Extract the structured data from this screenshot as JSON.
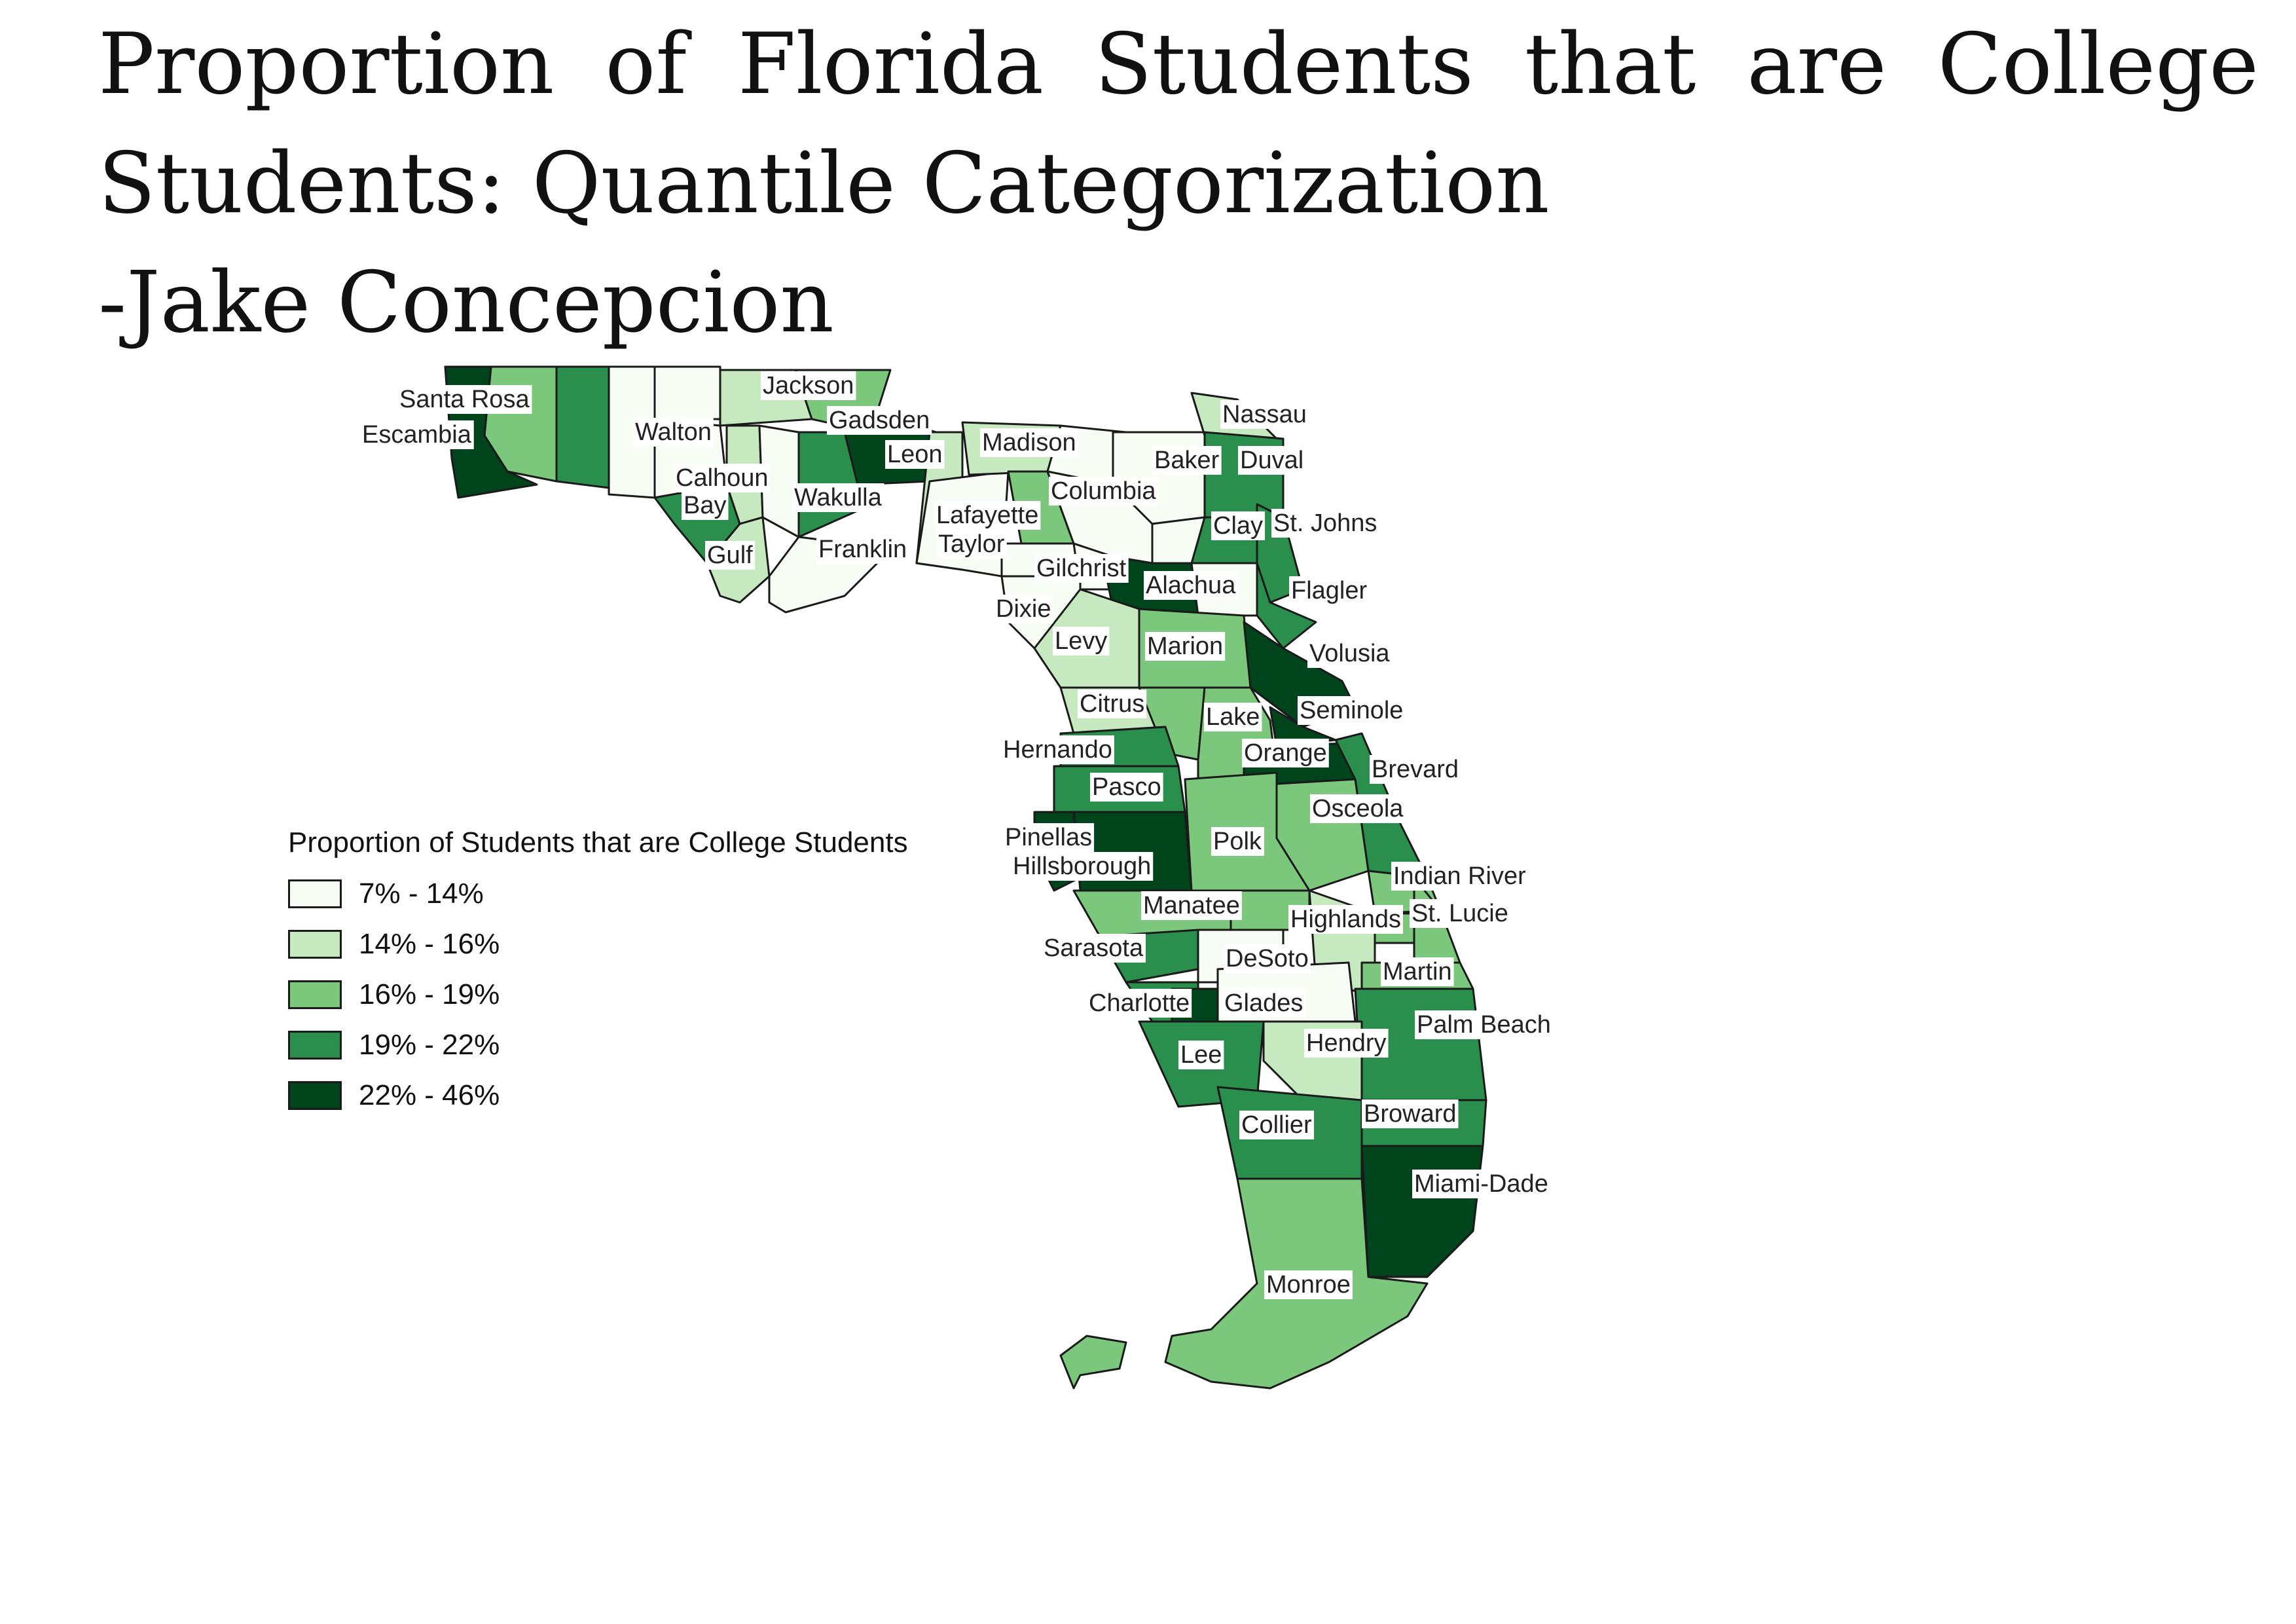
{
  "title": {
    "line1_words": [
      "Proportion",
      "of",
      "Florida",
      "Students",
      "that",
      "are",
      "College"
    ],
    "line2": "Students: Quantile Categorization",
    "line3": "-Jake Concepcion"
  },
  "legend": {
    "title": "Proportion of Students that are College Students",
    "classes": [
      {
        "label": "7% - 14%",
        "color": "#f7fcf5"
      },
      {
        "label": "14% - 16%",
        "color": "#c7e9c0"
      },
      {
        "label": "16% - 19%",
        "color": "#7bc87c"
      },
      {
        "label": "19% - 22%",
        "color": "#2a8f4c"
      },
      {
        "label": "22% - 46%",
        "color": "#00441b"
      }
    ]
  },
  "counties": {
    "santa_rosa": "Santa Rosa",
    "escambia": "Escambia",
    "walton": "Walton",
    "jackson": "Jackson",
    "gadsden": "Gadsden",
    "calhoun": "Calhoun",
    "bay": "Bay",
    "gulf": "Gulf",
    "leon": "Leon",
    "wakulla": "Wakulla",
    "franklin": "Franklin",
    "madison": "Madison",
    "lafayette": "Lafayette",
    "taylor": "Taylor",
    "columbia": "Columbia",
    "nassau": "Nassau",
    "baker": "Baker",
    "duval": "Duval",
    "clay": "Clay",
    "st_johns": "St. Johns",
    "gilchrist": "Gilchrist",
    "alachua": "Alachua",
    "flagler": "Flagler",
    "dixie": "Dixie",
    "levy": "Levy",
    "marion": "Marion",
    "volusia": "Volusia",
    "citrus": "Citrus",
    "lake": "Lake",
    "seminole": "Seminole",
    "hernando": "Hernando",
    "orange": "Orange",
    "brevard": "Brevard",
    "pasco": "Pasco",
    "osceola": "Osceola",
    "pinellas": "Pinellas",
    "polk": "Polk",
    "hillsborough": "Hillsborough",
    "indian_river": "Indian River",
    "manatee": "Manatee",
    "highlands": "Highlands",
    "st_lucie": "St. Lucie",
    "sarasota": "Sarasota",
    "desoto": "DeSoto",
    "martin": "Martin",
    "charlotte": "Charlotte",
    "glades": "Glades",
    "palm_beach": "Palm Beach",
    "hendry": "Hendry",
    "lee": "Lee",
    "broward": "Broward",
    "collier": "Collier",
    "miami_dade": "Miami-Dade",
    "monroe": "Monroe"
  }
}
